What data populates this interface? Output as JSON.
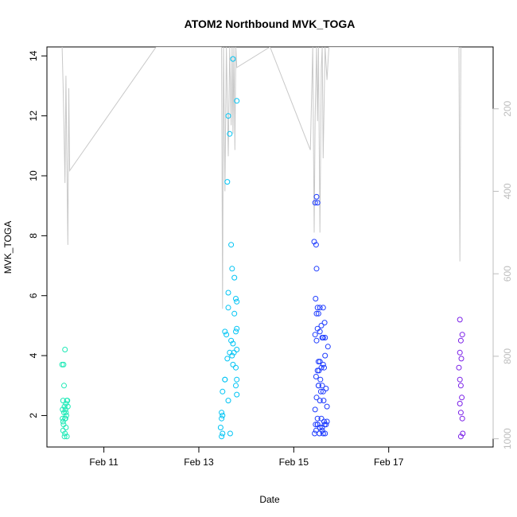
{
  "chart_data": {
    "type": "scatter",
    "title": "ATOM2 Northbound MVK_TOGA",
    "xlabel": "Date",
    "ylabel": "MVK_TOGA",
    "x_ticks": [
      "Feb 11",
      "Feb 13",
      "Feb 15",
      "Feb 17"
    ],
    "x_tick_positions": [
      11,
      13,
      15,
      17
    ],
    "xlim": [
      9.8,
      19.2
    ],
    "ylim": [
      0.95,
      14.3
    ],
    "y_ticks": [
      2,
      4,
      6,
      8,
      10,
      12,
      14
    ],
    "y2_label": "",
    "y2_ticks": [
      200,
      400,
      600,
      800,
      1000
    ],
    "y2lim": [
      1020,
      50
    ],
    "colors": {
      "line": "#c8c8c8",
      "right_axis": "#bdbdbd",
      "series_feb10": "#1de9b6",
      "series_feb13": "#00c4f4",
      "series_feb15": "#1e3cff",
      "series_feb18": "#7a1fe8"
    },
    "series": [
      {
        "color": "#1de9b6",
        "x": [
          10.12,
          10.15,
          10.18,
          10.22,
          10.14,
          10.2,
          10.17,
          10.24,
          10.13,
          10.19,
          10.16,
          10.21,
          10.13,
          10.18,
          10.23,
          10.15,
          10.2,
          10.14,
          10.18,
          10.22,
          10.17,
          10.16,
          10.2,
          10.19,
          10.14
        ],
        "y": [
          3.7,
          3.7,
          4.2,
          2.5,
          2.5,
          2.4,
          2.3,
          2.3,
          2.2,
          2.2,
          2.1,
          2.0,
          1.9,
          1.9,
          2.5,
          1.7,
          1.6,
          1.5,
          1.4,
          1.3,
          1.3,
          3.0,
          2.1,
          1.9,
          1.8
        ]
      },
      {
        "color": "#00c4f4",
        "x": [
          13.62,
          13.72,
          13.8,
          13.65,
          13.6,
          13.68,
          13.62,
          13.7,
          13.75,
          13.78,
          13.8,
          13.55,
          13.58,
          13.62,
          13.68,
          13.72,
          13.8,
          13.78,
          13.75,
          13.65,
          13.8,
          13.55,
          13.6,
          13.72,
          13.78,
          13.8,
          13.5,
          13.48,
          13.5,
          13.48,
          13.46,
          13.5,
          13.48,
          13.62,
          13.55,
          13.7,
          13.78,
          13.8,
          13.74,
          13.66
        ],
        "y": [
          12.0,
          13.9,
          12.5,
          11.4,
          9.8,
          7.7,
          6.1,
          6.9,
          6.6,
          5.9,
          5.8,
          4.8,
          4.7,
          5.6,
          4.5,
          4.4,
          4.9,
          4.8,
          5.4,
          4.1,
          4.2,
          3.2,
          3.9,
          3.7,
          3.6,
          3.2,
          2.8,
          2.1,
          2.0,
          1.9,
          1.6,
          1.4,
          1.3,
          2.5,
          3.2,
          4.0,
          3.0,
          2.7,
          4.1,
          1.4
        ]
      },
      {
        "color": "#1e3cff",
        "x": [
          15.48,
          15.45,
          15.5,
          15.43,
          15.47,
          15.48,
          15.46,
          15.5,
          15.55,
          15.48,
          15.52,
          15.62,
          15.58,
          15.65,
          15.66,
          15.55,
          15.6,
          15.5,
          15.62,
          15.45,
          15.48,
          15.52,
          15.55,
          15.58,
          15.62,
          15.64,
          15.72,
          15.47,
          15.5,
          15.53,
          15.56,
          15.6,
          15.52,
          15.66,
          15.45,
          15.48,
          15.55,
          15.62,
          15.68,
          15.7,
          15.5,
          15.58,
          15.64,
          15.7,
          15.46,
          15.5,
          15.55,
          15.6,
          15.65,
          15.68,
          15.62,
          15.44,
          15.47,
          15.5,
          15.54,
          15.6,
          15.52,
          15.57,
          15.63,
          15.66
        ],
        "y": [
          9.3,
          9.1,
          9.1,
          7.8,
          7.7,
          6.9,
          5.9,
          5.6,
          5.6,
          5.4,
          5.4,
          5.6,
          5.0,
          5.1,
          4.6,
          4.8,
          4.6,
          4.9,
          4.6,
          4.7,
          4.5,
          3.8,
          3.8,
          3.6,
          3.7,
          3.6,
          4.3,
          3.3,
          3.5,
          3.5,
          3.2,
          3.0,
          3.0,
          4.0,
          2.2,
          2.6,
          2.5,
          2.8,
          2.9,
          2.3,
          1.9,
          1.9,
          1.8,
          1.8,
          1.7,
          1.7,
          1.6,
          1.6,
          1.7,
          1.7,
          1.4,
          1.4,
          1.5,
          1.7,
          1.4,
          1.5,
          3.0,
          2.8,
          2.5,
          1.4
        ]
      },
      {
        "color": "#7a1fe8",
        "x": [
          18.5,
          18.55,
          18.52,
          18.5,
          18.53,
          18.48,
          18.5,
          18.52,
          18.54,
          18.5,
          18.52,
          18.55,
          18.56,
          18.52
        ],
        "y": [
          5.2,
          4.7,
          4.5,
          4.1,
          3.9,
          3.6,
          3.2,
          3.0,
          2.6,
          2.4,
          2.1,
          1.9,
          1.4,
          1.3
        ]
      }
    ],
    "line_series": {
      "color": "#c8c8c8",
      "x": [
        10.12,
        10.14,
        10.16,
        10.18,
        10.2,
        10.22,
        10.24,
        10.26,
        10.28,
        12.1,
        13.48,
        13.5,
        13.52,
        13.55,
        13.58,
        13.62,
        13.65,
        13.68,
        13.7,
        13.72,
        13.74,
        13.76,
        13.78,
        13.8,
        14.5,
        15.35,
        15.4,
        15.43,
        15.45,
        15.48,
        15.5,
        15.52,
        15.55,
        15.58,
        15.6,
        15.62,
        15.66,
        15.7,
        15.74,
        15.76,
        18.48,
        18.5,
        18.52
      ],
      "y2": [
        50,
        140,
        250,
        380,
        120,
        330,
        530,
        150,
        350,
        50,
        50,
        685,
        50,
        400,
        50,
        315,
        50,
        240,
        50,
        260,
        50,
        300,
        50,
        100,
        50,
        300,
        50,
        500,
        220,
        50,
        230,
        50,
        500,
        100,
        50,
        320,
        50,
        130,
        50,
        50,
        50,
        570,
        50
      ]
    }
  }
}
